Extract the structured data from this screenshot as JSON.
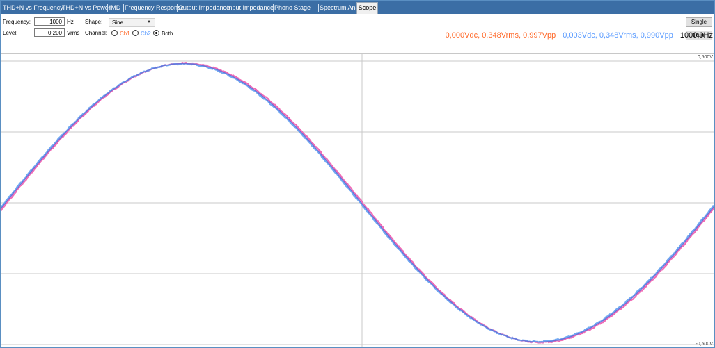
{
  "tabs": [
    {
      "label": "THD+N vs Frequency"
    },
    {
      "label": "THD+N vs Power"
    },
    {
      "label": "IMD"
    },
    {
      "label": "Frequency Response"
    },
    {
      "label": "Output Impedance"
    },
    {
      "label": "Input Impedance"
    },
    {
      "label": "Phono Stage"
    },
    {
      "label": "Spectrum Analyzer"
    },
    {
      "label": "Scope"
    }
  ],
  "active_tab": "Scope",
  "controls": {
    "frequency_label": "Frequency:",
    "frequency_value": "1000",
    "frequency_unit": "Hz",
    "level_label": "Level:",
    "level_value": "0.200",
    "level_unit": "Vrms",
    "shape_label": "Shape:",
    "shape_value": "Sine",
    "channel_label": "Channel:",
    "channel_options": [
      "Ch1",
      "Ch2",
      "Both"
    ],
    "channel_selected": "Both"
  },
  "buttons": {
    "single": "Single",
    "run": "Run"
  },
  "readout": {
    "ch1": "0,000Vdc, 0,348Vrms, 0,997Vpp",
    "ch2": "0,003Vdc, 0,348Vrms, 0,990Vpp",
    "freq": "1000,0Hz"
  },
  "scope": {
    "top_scale": "0,500V",
    "bottom_scale": "-0,500V"
  },
  "colors": {
    "tab_bar": "#3b6ea5",
    "ch1": "#ff6a2b",
    "ch2": "#5a9bff",
    "trace1": "#f06ab5",
    "trace2": "#6fa8f2",
    "trace_overlap": "#6b6fd6",
    "grid": "#c9c9c9"
  },
  "icons": {
    "dropdown": "chevron-down-icon"
  }
}
